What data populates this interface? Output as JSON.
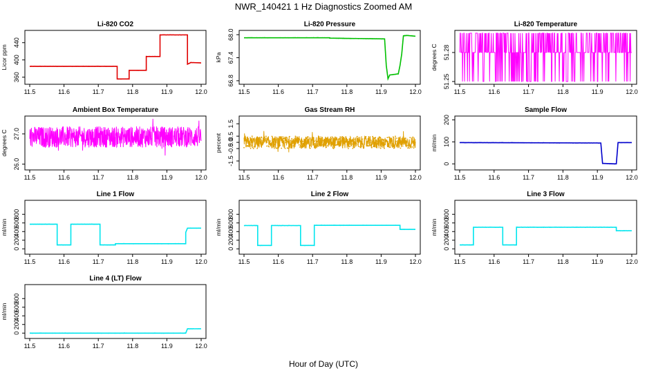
{
  "figure": {
    "title": "NWR_140421  1 Hz Diagnostics Zoomed AM",
    "xlabel": "Hour of Day (UTC)"
  },
  "chart_data": [
    {
      "type": "line",
      "title": "Li-820 CO2",
      "ylabel": "Licor ppm",
      "color": "#e00000",
      "xlim": [
        11.5,
        12.0
      ],
      "ylim": [
        350,
        462
      ],
      "xticks": [
        "11.5",
        "11.6",
        "11.7",
        "11.8",
        "11.9",
        "12.0"
      ],
      "yticks": [
        "360",
        "400",
        "440"
      ],
      "series": [
        {
          "x": [
            11.5,
            11.755,
            11.755,
            11.79,
            11.79,
            11.84,
            11.84,
            11.88,
            11.88,
            11.96,
            11.96,
            11.97,
            12.0
          ],
          "y": [
            385,
            385,
            356,
            356,
            376,
            376,
            408,
            408,
            458,
            458,
            390,
            394,
            393
          ]
        }
      ]
    },
    {
      "type": "line",
      "title": "Li-820 Pressure",
      "ylabel": "kPa",
      "color": "#00c000",
      "xlim": [
        11.5,
        12.0
      ],
      "ylim": [
        66.78,
        68.04
      ],
      "xticks": [
        "11.5",
        "11.6",
        "11.7",
        "11.8",
        "11.9",
        "12.0"
      ],
      "yticks": [
        "66.8",
        "67.4",
        "68.0"
      ],
      "series": [
        {
          "x": [
            11.5,
            11.75,
            11.75,
            11.91,
            11.915,
            11.92,
            11.925,
            11.95,
            11.955,
            11.96,
            11.965,
            11.975,
            12.0
          ],
          "y": [
            67.92,
            67.92,
            67.91,
            67.89,
            67.2,
            66.85,
            66.95,
            66.98,
            67.2,
            67.5,
            67.97,
            67.98,
            67.96
          ]
        }
      ]
    },
    {
      "type": "line",
      "title": "Li-820 Temperature",
      "ylabel": "degrees C",
      "color": "#ff00ff",
      "xlim": [
        11.5,
        12.0
      ],
      "ylim": [
        51.25,
        51.3
      ],
      "noise": "binary",
      "xticks": [
        "11.5",
        "11.6",
        "11.7",
        "11.8",
        "11.9",
        "12.0"
      ],
      "yticks": [
        "51.25",
        "51.28"
      ],
      "levels": [
        51.25,
        51.28,
        51.3
      ]
    },
    {
      "type": "line",
      "title": "Ambient Box Temperature",
      "ylabel": "degrees C",
      "color": "#ff00ff",
      "xlim": [
        11.5,
        12.0
      ],
      "ylim": [
        25.9,
        27.5
      ],
      "noise": "random",
      "xticks": [
        "11.5",
        "11.6",
        "11.7",
        "11.8",
        "11.9",
        "12.0"
      ],
      "yticks": [
        "26.0",
        "27.0"
      ],
      "center": 26.9,
      "amplitude": 0.35
    },
    {
      "type": "scatter",
      "title": "Gas Stream RH",
      "ylabel": "percent",
      "color": "#e0a000",
      "xlim": [
        11.5,
        12.0
      ],
      "ylim": [
        -2.0,
        1.9
      ],
      "noise": "random",
      "xticks": [
        "11.5",
        "11.6",
        "11.7",
        "11.8",
        "11.9",
        "12.0"
      ],
      "yticks": [
        "-1.5",
        "-0.5",
        "0.0",
        "0.5",
        "1.5"
      ],
      "center": 0.0,
      "amplitude": 0.5
    },
    {
      "type": "line",
      "title": "Sample Flow",
      "ylabel": "ml/min",
      "color": "#0000cc",
      "xlim": [
        11.5,
        12.0
      ],
      "ylim": [
        -15,
        205
      ],
      "xticks": [
        "11.5",
        "11.6",
        "11.7",
        "11.8",
        "11.9",
        "12.0"
      ],
      "yticks": [
        "0",
        "100",
        "200"
      ],
      "series": [
        {
          "x": [
            11.5,
            11.9,
            11.91,
            11.915,
            11.95,
            11.955,
            11.96,
            12.0
          ],
          "y": [
            97,
            95,
            95,
            2,
            0,
            0,
            97,
            97
          ]
        }
      ]
    },
    {
      "type": "line",
      "title": "Line 1 Flow",
      "ylabel": "ml/min",
      "color": "#00e5ee",
      "xlim": [
        11.5,
        12.0
      ],
      "ylim": [
        -60,
        1060
      ],
      "xticks": [
        "11.5",
        "11.6",
        "11.7",
        "11.8",
        "11.9",
        "12.0"
      ],
      "yticks": [
        "0",
        "200",
        "400",
        "600",
        "800"
      ],
      "series": [
        {
          "x": [
            11.5,
            11.58,
            11.58,
            11.62,
            11.62,
            11.705,
            11.705,
            11.75,
            11.75,
            11.955,
            11.955,
            11.96,
            12.0
          ],
          "y": [
            570,
            570,
            90,
            90,
            570,
            570,
            90,
            90,
            120,
            120,
            380,
            480,
            480
          ]
        }
      ]
    },
    {
      "type": "line",
      "title": "Line 2 Flow",
      "ylabel": "ml/min",
      "color": "#00e5ee",
      "xlim": [
        11.5,
        12.0
      ],
      "ylim": [
        -60,
        1060
      ],
      "xticks": [
        "11.5",
        "11.6",
        "11.7",
        "11.8",
        "11.9",
        "12.0"
      ],
      "yticks": [
        "0",
        "200",
        "400",
        "600",
        "800"
      ],
      "series": [
        {
          "x": [
            11.5,
            11.54,
            11.54,
            11.58,
            11.58,
            11.665,
            11.665,
            11.705,
            11.705,
            11.955,
            11.955,
            12.0
          ],
          "y": [
            540,
            540,
            80,
            80,
            540,
            540,
            80,
            80,
            545,
            545,
            450,
            450
          ]
        }
      ]
    },
    {
      "type": "line",
      "title": "Line 3 Flow",
      "ylabel": "ml/min",
      "color": "#00e5ee",
      "xlim": [
        11.5,
        12.0
      ],
      "ylim": [
        -60,
        1060
      ],
      "xticks": [
        "11.5",
        "11.6",
        "11.7",
        "11.8",
        "11.9",
        "12.0"
      ],
      "yticks": [
        "0",
        "200",
        "400",
        "600",
        "800"
      ],
      "series": [
        {
          "x": [
            11.5,
            11.54,
            11.54,
            11.625,
            11.625,
            11.665,
            11.665,
            11.955,
            11.955,
            12.0
          ],
          "y": [
            90,
            90,
            500,
            500,
            90,
            90,
            500,
            500,
            420,
            420
          ]
        }
      ]
    },
    {
      "type": "line",
      "title": "Line 4 (LT) Flow",
      "ylabel": "ml/min",
      "color": "#00e5ee",
      "xlim": [
        11.5,
        12.0
      ],
      "ylim": [
        -60,
        1060
      ],
      "xticks": [
        "11.5",
        "11.6",
        "11.7",
        "11.8",
        "11.9",
        "12.0"
      ],
      "yticks": [
        "0",
        "200",
        "400",
        "600",
        "800"
      ],
      "series": [
        {
          "x": [
            11.5,
            11.955,
            11.96,
            12.0
          ],
          "y": [
            0,
            0,
            100,
            100
          ]
        }
      ]
    }
  ]
}
